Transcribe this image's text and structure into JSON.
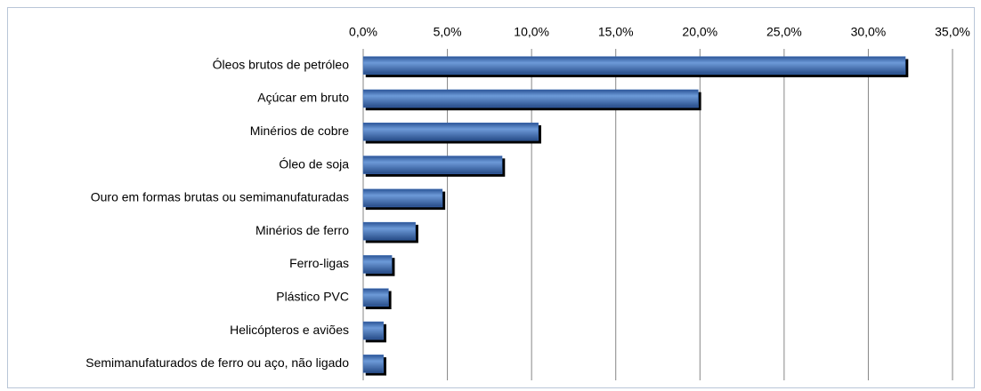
{
  "chart_data": {
    "type": "bar",
    "orientation": "horizontal",
    "categories": [
      "Óleos brutos de petróleo",
      "Açúcar em bruto",
      "Minérios de cobre",
      "Óleo de soja",
      "Ouro em formas brutas ou semimanufaturadas",
      "Minérios de ferro",
      "Ferro-ligas",
      "Plástico PVC",
      "Helicópteros e aviões",
      "Semimanufaturados de ferro ou aço, não ligado"
    ],
    "values": [
      32.2,
      19.9,
      10.4,
      8.25,
      4.7,
      3.1,
      1.7,
      1.5,
      1.2,
      1.2
    ],
    "color": "#3d6cb4",
    "xlim": [
      0,
      35
    ],
    "xticks": [
      {
        "value": 0,
        "label": "0,0%"
      },
      {
        "value": 5,
        "label": "5,0%"
      },
      {
        "value": 10,
        "label": "10,0%"
      },
      {
        "value": 15,
        "label": "15,0%"
      },
      {
        "value": 20,
        "label": "20,0%"
      },
      {
        "value": 25,
        "label": "25,0%"
      },
      {
        "value": 30,
        "label": "30,0%"
      },
      {
        "value": 35,
        "label": "35,0%"
      }
    ],
    "grid": true
  }
}
